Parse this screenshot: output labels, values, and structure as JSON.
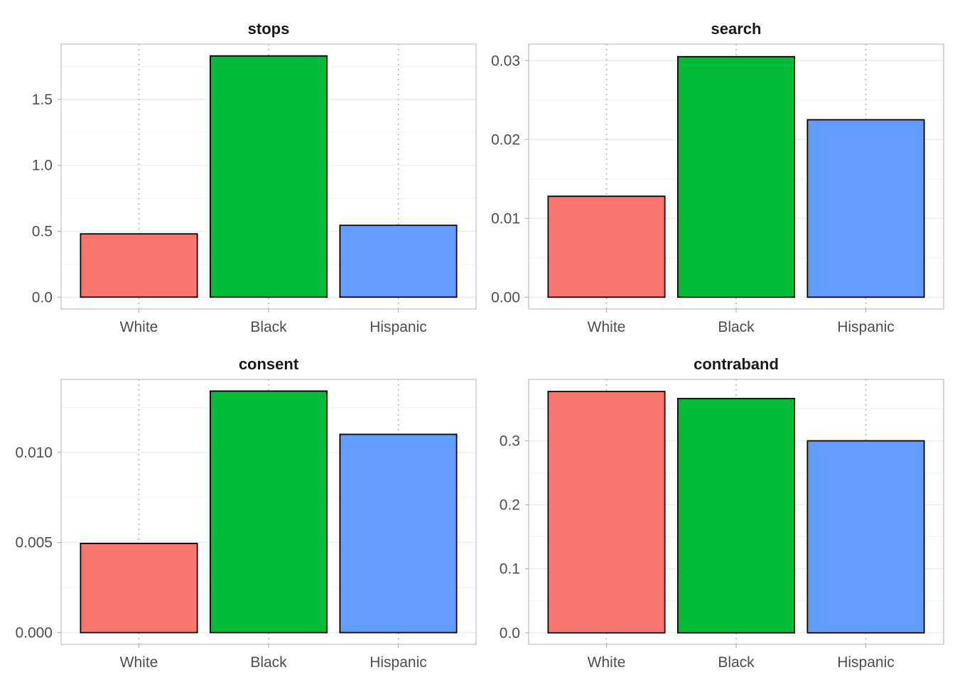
{
  "chart_data": [
    {
      "type": "bar",
      "title": "stops",
      "categories": [
        "White",
        "Black",
        "Hispanic"
      ],
      "values": [
        0.48,
        1.83,
        0.545
      ],
      "ylim": [
        -0.09,
        1.92
      ],
      "yticks": [
        0.0,
        0.5,
        1.0,
        1.5
      ],
      "ytick_labels": [
        "0.0",
        "0.5",
        "1.0",
        "1.5"
      ],
      "colors": [
        "#F8766D",
        "#00BA38",
        "#619CFF"
      ],
      "grid": true
    },
    {
      "type": "bar",
      "title": "search",
      "categories": [
        "White",
        "Black",
        "Hispanic"
      ],
      "values": [
        0.0128,
        0.0305,
        0.0225
      ],
      "ylim": [
        -0.0015,
        0.0321
      ],
      "yticks": [
        0.0,
        0.01,
        0.02,
        0.03
      ],
      "ytick_labels": [
        "0.00",
        "0.01",
        "0.02",
        "0.03"
      ],
      "colors": [
        "#F8766D",
        "#00BA38",
        "#619CFF"
      ],
      "grid": true
    },
    {
      "type": "bar",
      "title": "consent",
      "categories": [
        "White",
        "Black",
        "Hispanic"
      ],
      "values": [
        0.00495,
        0.0134,
        0.011
      ],
      "ylim": [
        -0.00065,
        0.01405
      ],
      "yticks": [
        0.0,
        0.005,
        0.01
      ],
      "ytick_labels": [
        "0.000",
        "0.005",
        "0.010"
      ],
      "colors": [
        "#F8766D",
        "#00BA38",
        "#619CFF"
      ],
      "grid": true
    },
    {
      "type": "bar",
      "title": "contraband",
      "categories": [
        "White",
        "Black",
        "Hispanic"
      ],
      "values": [
        0.377,
        0.366,
        0.3
      ],
      "ylim": [
        -0.018,
        0.396
      ],
      "yticks": [
        0.0,
        0.1,
        0.2,
        0.3
      ],
      "ytick_labels": [
        "0.0",
        "0.1",
        "0.2",
        "0.3"
      ],
      "colors": [
        "#F8766D",
        "#00BA38",
        "#619CFF"
      ],
      "grid": true
    }
  ]
}
